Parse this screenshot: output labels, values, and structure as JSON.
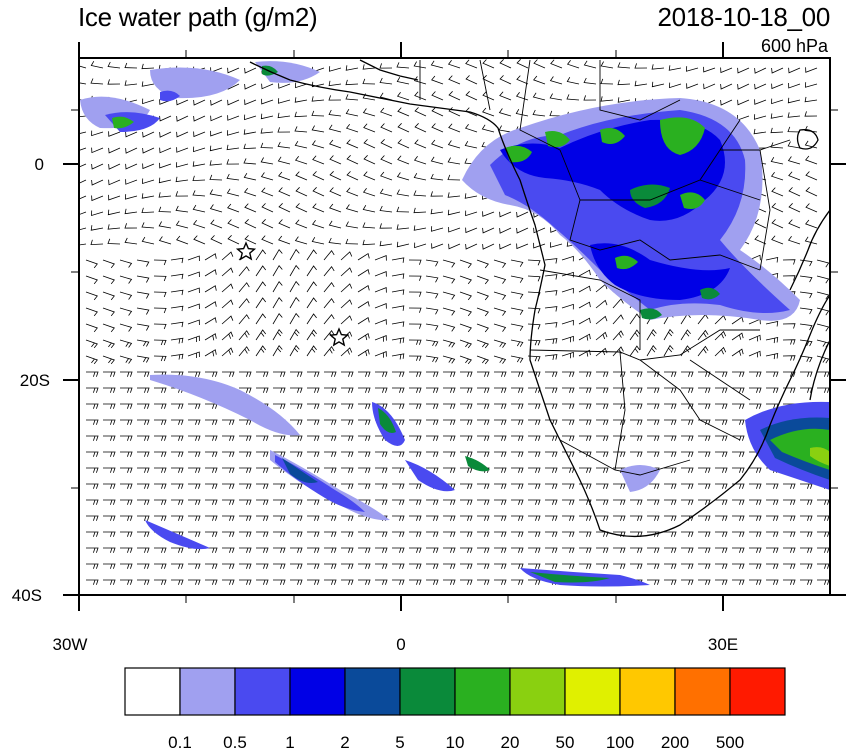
{
  "title_left": "Ice water path (g/m2)",
  "title_right": "2018-10-18_00",
  "level_label": "600 hPa",
  "axes": {
    "x_ticks": [
      "30W",
      "0",
      "30E"
    ],
    "y_ticks": [
      "0",
      "20S",
      "40S"
    ]
  },
  "colorbar": {
    "colors": [
      "#ffffff",
      "#a0a0f0",
      "#4a4af0",
      "#0000e6",
      "#0a4a9a",
      "#0a8a3a",
      "#2ab020",
      "#8ad010",
      "#e0f000",
      "#ffc800",
      "#ff7000",
      "#ff1a00"
    ],
    "labels": [
      "0.1",
      "0.5",
      "1",
      "2",
      "5",
      "10",
      "20",
      "50",
      "100",
      "200",
      "500"
    ]
  },
  "markers": [
    "star-marker-1",
    "star-marker-2"
  ]
}
